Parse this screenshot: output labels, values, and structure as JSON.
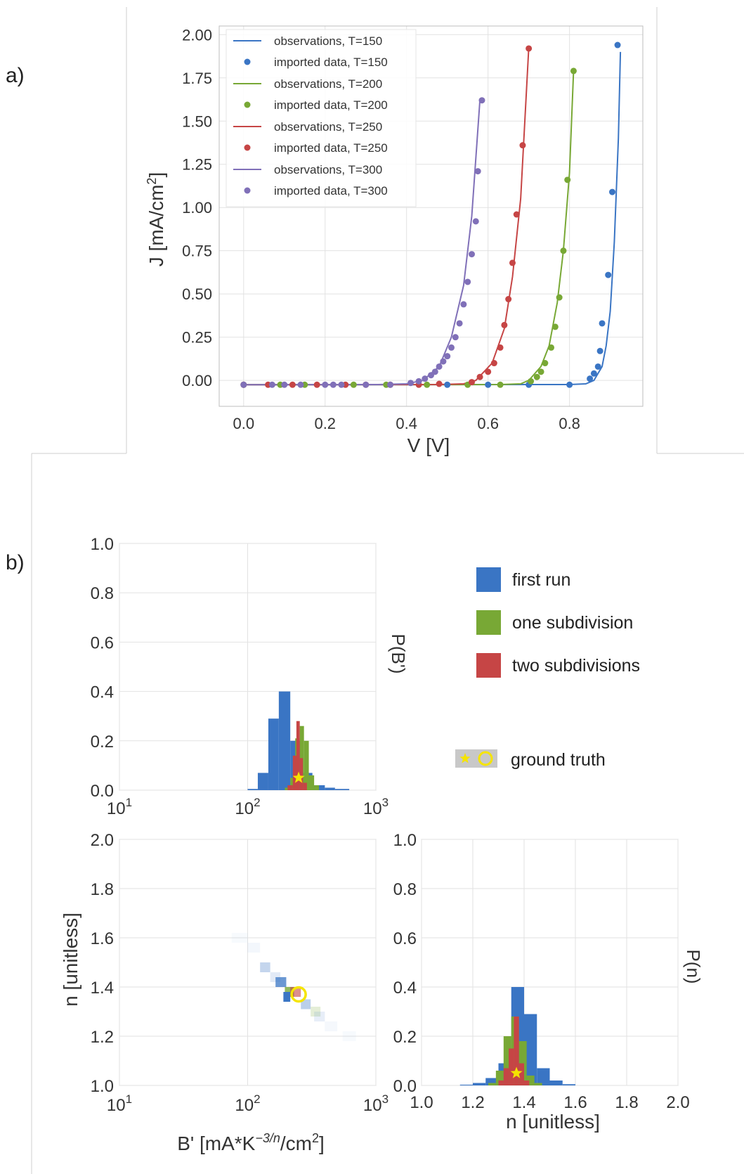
{
  "panel_a": {
    "tag": "a)",
    "chart_data": {
      "type": "line",
      "xlabel": "V [V]",
      "ylabel": "J [mA/cm",
      "ylabel_sup": "2",
      "ylabel_end": "]",
      "xlim": [
        -0.06,
        0.98
      ],
      "ylim": [
        -0.15,
        2.05
      ],
      "x_ticks": [
        0.0,
        0.2,
        0.4,
        0.6,
        0.8
      ],
      "x_tick_labels": [
        "0.0",
        "0.2",
        "0.4",
        "0.6",
        "0.8"
      ],
      "y_ticks": [
        0.0,
        0.25,
        0.5,
        0.75,
        1.0,
        1.25,
        1.5,
        1.75,
        2.0
      ],
      "y_tick_labels": [
        "0.00",
        "0.25",
        "0.50",
        "0.75",
        "1.00",
        "1.25",
        "1.50",
        "1.75",
        "2.00"
      ],
      "grid": true,
      "legend_position": "top-left",
      "series": [
        {
          "line_name": "observations, T=150",
          "dot_name": "imported data, T=150",
          "color": "#3a75c4",
          "curve": [
            [
              0.0,
              -0.025
            ],
            [
              0.8,
              -0.024
            ],
            [
              0.84,
              -0.02
            ],
            [
              0.86,
              0.0
            ],
            [
              0.88,
              0.08
            ],
            [
              0.89,
              0.2
            ],
            [
              0.9,
              0.4
            ],
            [
              0.91,
              0.8
            ],
            [
              0.92,
              1.4
            ],
            [
              0.925,
              1.9
            ]
          ],
          "points": [
            [
              0.0,
              -0.025
            ],
            [
              0.5,
              -0.025
            ],
            [
              0.6,
              -0.025
            ],
            [
              0.7,
              -0.025
            ],
            [
              0.8,
              -0.025
            ],
            [
              0.85,
              0.01
            ],
            [
              0.86,
              0.04
            ],
            [
              0.87,
              0.08
            ],
            [
              0.875,
              0.17
            ],
            [
              0.88,
              0.33
            ],
            [
              0.895,
              0.61
            ],
            [
              0.905,
              1.09
            ],
            [
              0.918,
              1.94
            ]
          ]
        },
        {
          "line_name": "observations, T=200",
          "dot_name": "imported data, T=200",
          "color": "#78a835",
          "curve": [
            [
              0.0,
              -0.025
            ],
            [
              0.63,
              -0.024
            ],
            [
              0.68,
              -0.02
            ],
            [
              0.7,
              0.0
            ],
            [
              0.73,
              0.08
            ],
            [
              0.75,
              0.2
            ],
            [
              0.77,
              0.45
            ],
            [
              0.785,
              0.75
            ],
            [
              0.8,
              1.2
            ],
            [
              0.81,
              1.79
            ]
          ],
          "points": [
            [
              0.0,
              -0.025
            ],
            [
              0.09,
              -0.025
            ],
            [
              0.15,
              -0.025
            ],
            [
              0.27,
              -0.025
            ],
            [
              0.35,
              -0.025
            ],
            [
              0.45,
              -0.025
            ],
            [
              0.55,
              -0.025
            ],
            [
              0.63,
              -0.025
            ],
            [
              0.705,
              -0.005
            ],
            [
              0.72,
              0.02
            ],
            [
              0.73,
              0.05
            ],
            [
              0.74,
              0.1
            ],
            [
              0.755,
              0.19
            ],
            [
              0.765,
              0.31
            ],
            [
              0.775,
              0.48
            ],
            [
              0.785,
              0.75
            ],
            [
              0.795,
              1.16
            ],
            [
              0.81,
              1.79
            ]
          ]
        },
        {
          "line_name": "observations, T=250",
          "dot_name": "imported data, T=250",
          "color": "#c64545",
          "curve": [
            [
              0.0,
              -0.025
            ],
            [
              0.48,
              -0.024
            ],
            [
              0.54,
              -0.02
            ],
            [
              0.57,
              0.0
            ],
            [
              0.61,
              0.1
            ],
            [
              0.64,
              0.3
            ],
            [
              0.66,
              0.6
            ],
            [
              0.68,
              1.05
            ],
            [
              0.7,
              1.93
            ]
          ],
          "points": [
            [
              0.0,
              -0.025
            ],
            [
              0.06,
              -0.025
            ],
            [
              0.12,
              -0.025
            ],
            [
              0.18,
              -0.025
            ],
            [
              0.25,
              -0.025
            ],
            [
              0.3,
              -0.025
            ],
            [
              0.36,
              -0.025
            ],
            [
              0.43,
              -0.025
            ],
            [
              0.48,
              -0.02
            ],
            [
              0.56,
              -0.01
            ],
            [
              0.58,
              0.02
            ],
            [
              0.6,
              0.05
            ],
            [
              0.615,
              0.1
            ],
            [
              0.63,
              0.19
            ],
            [
              0.64,
              0.32
            ],
            [
              0.65,
              0.47
            ],
            [
              0.66,
              0.68
            ],
            [
              0.67,
              0.96
            ],
            [
              0.685,
              1.36
            ],
            [
              0.7,
              1.92
            ]
          ]
        },
        {
          "line_name": "observations, T=300",
          "dot_name": "imported data, T=300",
          "color": "#8070b8",
          "curve": [
            [
              0.0,
              -0.025
            ],
            [
              0.33,
              -0.024
            ],
            [
              0.4,
              -0.02
            ],
            [
              0.44,
              0.0
            ],
            [
              0.48,
              0.08
            ],
            [
              0.51,
              0.25
            ],
            [
              0.54,
              0.55
            ],
            [
              0.56,
              0.95
            ],
            [
              0.58,
              1.62
            ]
          ],
          "points": [
            [
              0.0,
              -0.025
            ],
            [
              0.07,
              -0.025
            ],
            [
              0.1,
              -0.025
            ],
            [
              0.14,
              -0.025
            ],
            [
              0.2,
              -0.025
            ],
            [
              0.22,
              -0.025
            ],
            [
              0.24,
              -0.025
            ],
            [
              0.3,
              -0.025
            ],
            [
              0.36,
              -0.025
            ],
            [
              0.41,
              -0.015
            ],
            [
              0.43,
              -0.005
            ],
            [
              0.445,
              0.01
            ],
            [
              0.46,
              0.03
            ],
            [
              0.47,
              0.05
            ],
            [
              0.48,
              0.08
            ],
            [
              0.49,
              0.11
            ],
            [
              0.5,
              0.14
            ],
            [
              0.51,
              0.19
            ],
            [
              0.52,
              0.25
            ],
            [
              0.53,
              0.33
            ],
            [
              0.54,
              0.44
            ],
            [
              0.55,
              0.57
            ],
            [
              0.56,
              0.73
            ],
            [
              0.57,
              0.92
            ],
            [
              0.575,
              1.21
            ],
            [
              0.585,
              1.62
            ]
          ]
        }
      ]
    }
  },
  "panel_b": {
    "tag": "b)",
    "legend": {
      "items": [
        {
          "label": "first run",
          "color": "#3a75c4"
        },
        {
          "label": "one subdivision",
          "color": "#78a835"
        },
        {
          "label": "two subdivisions",
          "color": "#c64545"
        }
      ],
      "ground_truth_label": "ground truth",
      "marker_color": "#f5e400"
    },
    "chart_data": [
      {
        "type": "bar",
        "name": "histogram-bprime",
        "side_label": "P(B')",
        "xscale": "log",
        "xlim": [
          10,
          1000
        ],
        "ylim": [
          0,
          1.0
        ],
        "x_tick_labels": [
          {
            "base": "10",
            "exp": "1"
          },
          {
            "base": "10",
            "exp": "2"
          },
          {
            "base": "10",
            "exp": "3"
          }
        ],
        "y_tick_labels": [
          "0.0",
          "0.2",
          "0.4",
          "0.6",
          "0.8",
          "1.0"
        ],
        "ground_truth": 250,
        "series": [
          {
            "name": "first run",
            "color": "#3a75c4",
            "bins": [
              [
                100,
                120,
                0.005
              ],
              [
                120,
                145,
                0.07
              ],
              [
                145,
                175,
                0.29
              ],
              [
                175,
                215,
                0.4
              ],
              [
                215,
                260,
                0.2
              ],
              [
                260,
                320,
                0.07
              ],
              [
                320,
                400,
                0.02
              ],
              [
                400,
                480,
                0.01
              ],
              [
                480,
                620,
                0.005
              ]
            ]
          },
          {
            "name": "one subdivision",
            "color": "#78a835",
            "bins": [
              [
                195,
                215,
                0.01
              ],
              [
                215,
                235,
                0.05
              ],
              [
                235,
                255,
                0.21
              ],
              [
                255,
                275,
                0.26
              ],
              [
                275,
                300,
                0.2
              ],
              [
                300,
                330,
                0.06
              ],
              [
                330,
                360,
                0.02
              ]
            ]
          },
          {
            "name": "two subdivisions",
            "color": "#c64545",
            "bins": [
              [
                205,
                225,
                0.02
              ],
              [
                225,
                240,
                0.14
              ],
              [
                240,
                255,
                0.28
              ],
              [
                255,
                270,
                0.13
              ],
              [
                270,
                290,
                0.03
              ]
            ]
          }
        ]
      },
      {
        "type": "heatmap",
        "name": "joint-bprime-n",
        "xlabel": "B' [mA*K",
        "xlabel_sup": "−3/n",
        "xlabel_end": "/cm",
        "xlabel_sup2": "2",
        "xlabel_close": "]",
        "ylabel": "n [unitless]",
        "xscale": "log",
        "xlim": [
          10,
          1000
        ],
        "ylim": [
          1.0,
          2.0
        ],
        "x_tick_labels": [
          {
            "base": "10",
            "exp": "1"
          },
          {
            "base": "10",
            "exp": "2"
          },
          {
            "base": "10",
            "exp": "3"
          }
        ],
        "y_tick_labels": [
          "1.0",
          "1.2",
          "1.4",
          "1.6",
          "1.8",
          "2.0"
        ],
        "ground_truth": {
          "x": 250,
          "y": 1.37
        },
        "cells": [
          {
            "x0": 75,
            "x1": 100,
            "y0": 1.58,
            "y1": 1.62,
            "color": "#3a75c4",
            "alpha": 0.04
          },
          {
            "x0": 100,
            "x1": 125,
            "y0": 1.54,
            "y1": 1.58,
            "color": "#3a75c4",
            "alpha": 0.06
          },
          {
            "x0": 125,
            "x1": 150,
            "y0": 1.46,
            "y1": 1.5,
            "color": "#3a75c4",
            "alpha": 0.3
          },
          {
            "x0": 150,
            "x1": 180,
            "y0": 1.42,
            "y1": 1.46,
            "color": "#3a75c4",
            "alpha": 0.15
          },
          {
            "x0": 165,
            "x1": 200,
            "y0": 1.4,
            "y1": 1.44,
            "color": "#3a75c4",
            "alpha": 0.75
          },
          {
            "x0": 195,
            "x1": 230,
            "y0": 1.36,
            "y1": 1.4,
            "color": "#78a835",
            "alpha": 0.8
          },
          {
            "x0": 190,
            "x1": 215,
            "y0": 1.34,
            "y1": 1.38,
            "color": "#3a75c4",
            "alpha": 1.0
          },
          {
            "x0": 215,
            "x1": 260,
            "y0": 1.36,
            "y1": 1.4,
            "color": "#c64545",
            "alpha": 0.6
          },
          {
            "x0": 260,
            "x1": 310,
            "y0": 1.31,
            "y1": 1.35,
            "color": "#3a75c4",
            "alpha": 0.35
          },
          {
            "x0": 310,
            "x1": 370,
            "y0": 1.28,
            "y1": 1.32,
            "color": "#78a835",
            "alpha": 0.2
          },
          {
            "x0": 330,
            "x1": 400,
            "y0": 1.26,
            "y1": 1.3,
            "color": "#3a75c4",
            "alpha": 0.12
          },
          {
            "x0": 400,
            "x1": 500,
            "y0": 1.22,
            "y1": 1.26,
            "color": "#3a75c4",
            "alpha": 0.05
          },
          {
            "x0": 550,
            "x1": 700,
            "y0": 1.18,
            "y1": 1.22,
            "color": "#3a75c4",
            "alpha": 0.04
          }
        ]
      },
      {
        "type": "bar",
        "name": "histogram-n",
        "side_label": "P(n)",
        "xlabel": "n [unitless]",
        "xlim": [
          1.0,
          2.0
        ],
        "ylim": [
          0,
          1.0
        ],
        "x_tick_labels": [
          "1.0",
          "1.2",
          "1.4",
          "1.6",
          "1.8",
          "2.0"
        ],
        "y_tick_labels": [
          "0.0",
          "0.2",
          "0.4",
          "0.6",
          "0.8",
          "1.0"
        ],
        "ground_truth": 1.37,
        "series": [
          {
            "name": "first run",
            "color": "#3a75c4",
            "bins": [
              [
                1.15,
                1.2,
                0.003
              ],
              [
                1.2,
                1.25,
                0.01
              ],
              [
                1.25,
                1.3,
                0.03
              ],
              [
                1.3,
                1.35,
                0.09
              ],
              [
                1.35,
                1.4,
                0.4
              ],
              [
                1.4,
                1.45,
                0.29
              ],
              [
                1.45,
                1.5,
                0.07
              ],
              [
                1.5,
                1.55,
                0.02
              ],
              [
                1.55,
                1.6,
                0.005
              ]
            ]
          },
          {
            "name": "one subdivision",
            "color": "#78a835",
            "bins": [
              [
                1.26,
                1.29,
                0.01
              ],
              [
                1.29,
                1.32,
                0.06
              ],
              [
                1.32,
                1.35,
                0.2
              ],
              [
                1.35,
                1.38,
                0.28
              ],
              [
                1.38,
                1.41,
                0.18
              ],
              [
                1.41,
                1.44,
                0.04
              ],
              [
                1.44,
                1.47,
                0.01
              ]
            ]
          },
          {
            "name": "two subdivisions",
            "color": "#c64545",
            "bins": [
              [
                1.3,
                1.32,
                0.02
              ],
              [
                1.32,
                1.34,
                0.07
              ],
              [
                1.34,
                1.36,
                0.15
              ],
              [
                1.36,
                1.38,
                0.28
              ],
              [
                1.38,
                1.4,
                0.09
              ],
              [
                1.4,
                1.42,
                0.02
              ]
            ]
          }
        ]
      }
    ]
  }
}
